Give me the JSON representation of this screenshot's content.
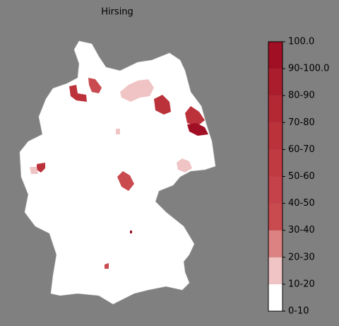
{
  "title": "Hirsing",
  "colorbar": {
    "labels": [
      "0-10",
      "10-20",
      "20-30",
      "30-40",
      "40-50",
      "50-60",
      "60-70",
      "70-80",
      "80-90",
      "90-100.0",
      "100.0"
    ],
    "colors": [
      "#ffffff",
      "#f0c4c4",
      "#dc8282",
      "#c94a4f",
      "#c5424a",
      "#c03a42",
      "#bb323b",
      "#b42834",
      "#ab1d2d",
      "#a00f24"
    ]
  },
  "region_values": [
    65,
    35,
    15,
    65,
    65,
    95,
    15,
    15,
    35,
    65,
    15,
    35,
    95
  ]
}
